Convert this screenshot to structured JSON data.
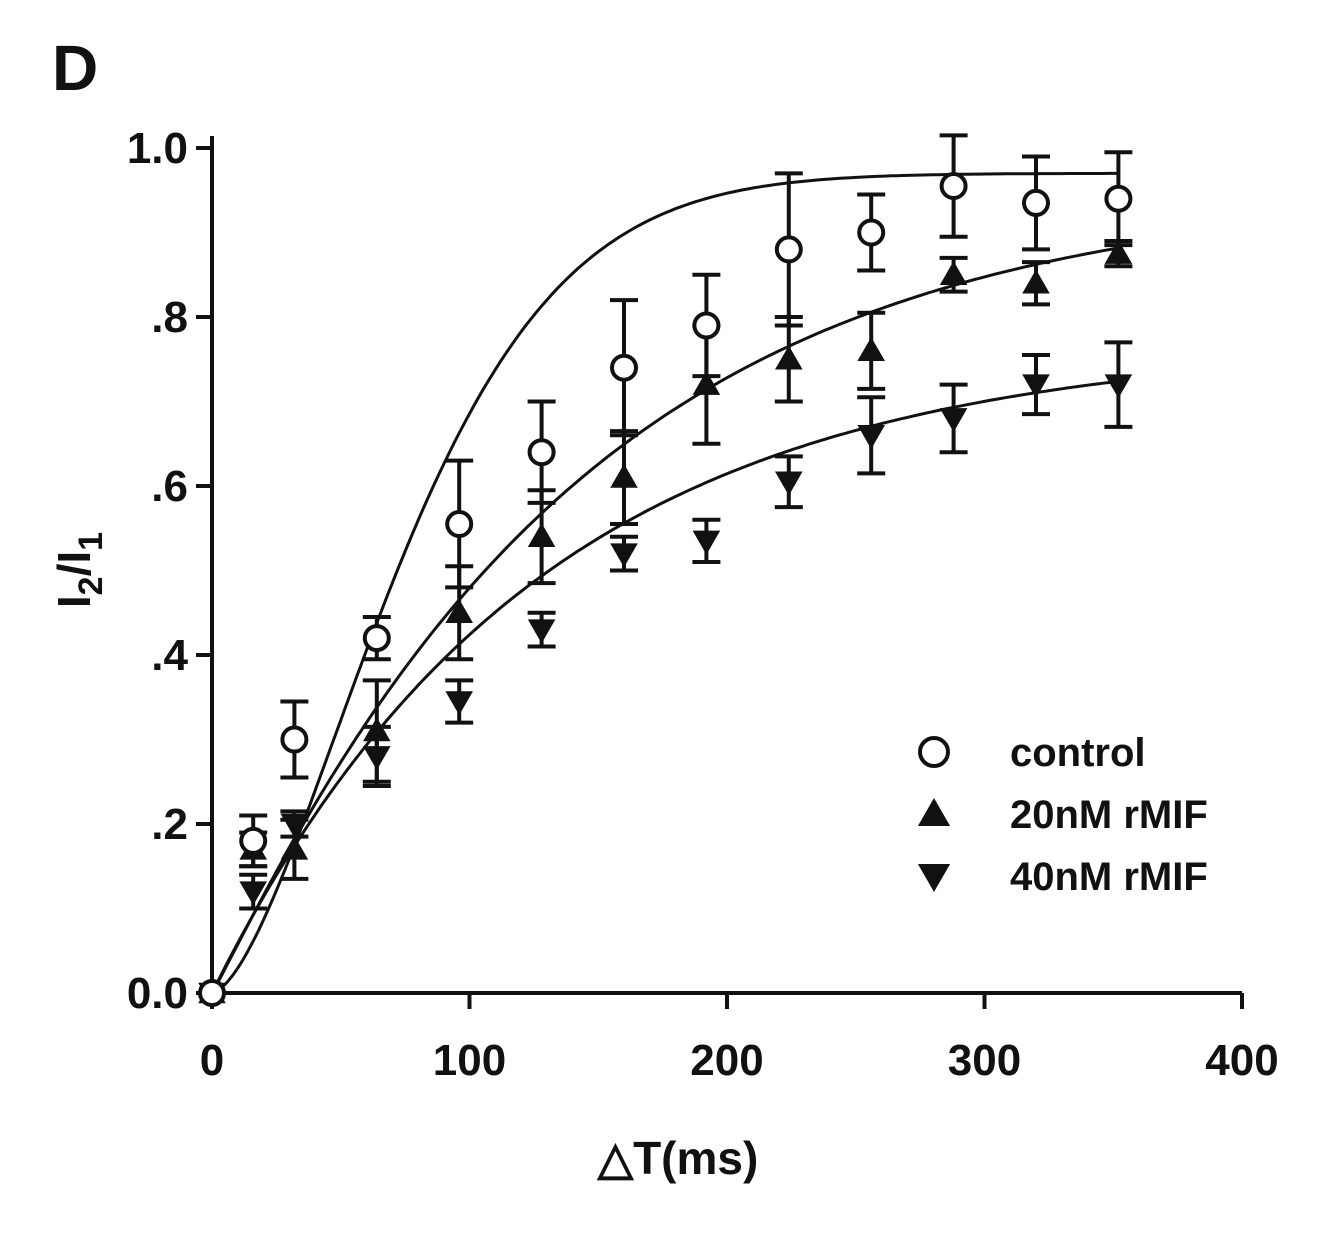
{
  "panel_label": "D",
  "chart_data": {
    "type": "scatter",
    "title": "",
    "xlabel": "△T(ms)",
    "ylabel": {
      "base": "I",
      "sub1": "2",
      "slash": "/I",
      "sub2": "1"
    },
    "xlim": [
      0,
      400
    ],
    "ylim": [
      0,
      1.0
    ],
    "x_ticks": [
      0,
      100,
      200,
      300,
      400
    ],
    "x_tick_labels": [
      "0",
      "100",
      "200",
      "300",
      "400"
    ],
    "y_ticks": [
      0,
      0.2,
      0.4,
      0.6,
      0.8,
      1.0
    ],
    "y_tick_labels": [
      "0.0",
      ".2",
      ".4",
      ".6",
      ".8",
      "1.0"
    ],
    "grid": false,
    "legend_position": "bottom-right",
    "series": [
      {
        "name": "control",
        "marker": "circle-open",
        "x": [
          0,
          16,
          32,
          64,
          96,
          128,
          160,
          192,
          224,
          256,
          288,
          320,
          352
        ],
        "y": [
          0.0,
          0.18,
          0.3,
          0.42,
          0.555,
          0.64,
          0.74,
          0.79,
          0.88,
          0.9,
          0.955,
          0.935,
          0.94
        ],
        "err": [
          0.0,
          0.03,
          0.045,
          0.025,
          0.075,
          0.06,
          0.08,
          0.06,
          0.09,
          0.045,
          0.06,
          0.055,
          0.055
        ],
        "fit": {
          "a": 0.97,
          "b": 88,
          "c": 1.6
        }
      },
      {
        "name": "20nM rMIF",
        "marker": "triangle-up",
        "x": [
          0,
          16,
          32,
          64,
          96,
          128,
          160,
          192,
          224,
          256,
          288,
          320,
          352
        ],
        "y": [
          0.0,
          0.17,
          0.17,
          0.31,
          0.45,
          0.54,
          0.61,
          0.72,
          0.75,
          0.76,
          0.85,
          0.84,
          0.875
        ],
        "err": [
          0.0,
          0.02,
          0.035,
          0.06,
          0.055,
          0.055,
          0.055,
          0.07,
          0.05,
          0.045,
          0.02,
          0.025,
          0.015
        ],
        "fit": {
          "a": 0.95,
          "b": 140,
          "c": 1.05
        }
      },
      {
        "name": "40nM rMIF",
        "marker": "triangle-down",
        "x": [
          0,
          16,
          32,
          64,
          96,
          128,
          160,
          192,
          224,
          256,
          288,
          320,
          352
        ],
        "y": [
          0.0,
          0.12,
          0.2,
          0.28,
          0.345,
          0.43,
          0.52,
          0.535,
          0.605,
          0.66,
          0.68,
          0.72,
          0.72
        ],
        "err": [
          0.0,
          0.02,
          0.015,
          0.035,
          0.025,
          0.02,
          0.02,
          0.025,
          0.03,
          0.045,
          0.04,
          0.035,
          0.05
        ],
        "fit": {
          "a": 0.77,
          "b": 125,
          "c": 1.0
        }
      }
    ]
  }
}
